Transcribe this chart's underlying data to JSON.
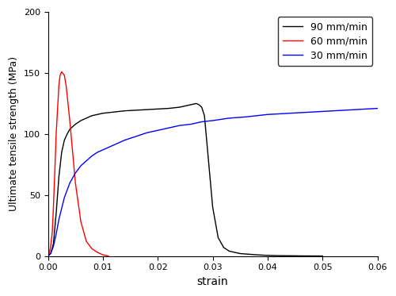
{
  "title": "",
  "xlabel": "strain",
  "ylabel": "Ultimate tensile strength (MPa)",
  "xlim": [
    0,
    0.06
  ],
  "ylim": [
    0,
    200
  ],
  "xticks": [
    0.0,
    0.01,
    0.02,
    0.03,
    0.04,
    0.05,
    0.06
  ],
  "yticks": [
    0,
    50,
    100,
    150,
    200
  ],
  "legend": [
    "90 mm/min",
    "60 mm/min",
    "30 mm/min"
  ],
  "legend_colors": [
    "black",
    "red",
    "blue"
  ],
  "background_color": "#ffffff",
  "line_width": 1.0,
  "black_curve": {
    "x": [
      0,
      0.0005,
      0.001,
      0.0015,
      0.002,
      0.0025,
      0.003,
      0.0035,
      0.004,
      0.005,
      0.006,
      0.007,
      0.008,
      0.009,
      0.01,
      0.012,
      0.014,
      0.016,
      0.018,
      0.02,
      0.022,
      0.024,
      0.025,
      0.026,
      0.027,
      0.0275,
      0.028,
      0.0285,
      0.029,
      0.03,
      0.031,
      0.032,
      0.033,
      0.035,
      0.038,
      0.04,
      0.042,
      0.044,
      0.046,
      0.048,
      0.05
    ],
    "y": [
      0,
      2,
      10,
      35,
      65,
      85,
      95,
      100,
      104,
      108,
      111,
      113,
      115,
      116,
      117,
      118,
      119,
      119.5,
      120,
      120.5,
      121,
      122,
      123,
      124,
      125,
      124,
      122,
      115,
      90,
      40,
      15,
      7,
      4,
      2,
      1,
      0.5,
      0.3,
      0.2,
      0.1,
      0.05,
      0
    ]
  },
  "red_curve": {
    "x": [
      0,
      0.0003,
      0.0005,
      0.0008,
      0.001,
      0.0013,
      0.0015,
      0.002,
      0.0022,
      0.0025,
      0.003,
      0.0033,
      0.0035,
      0.004,
      0.005,
      0.006,
      0.007,
      0.008,
      0.009,
      0.0095,
      0.01,
      0.011
    ],
    "y": [
      0,
      3,
      8,
      20,
      40,
      75,
      100,
      140,
      148,
      151,
      148,
      140,
      132,
      110,
      60,
      28,
      12,
      6,
      3,
      2,
      1,
      0
    ]
  },
  "blue_curve": {
    "x": [
      0,
      0.0005,
      0.001,
      0.0015,
      0.002,
      0.003,
      0.004,
      0.005,
      0.006,
      0.007,
      0.008,
      0.009,
      0.01,
      0.012,
      0.014,
      0.016,
      0.018,
      0.02,
      0.022,
      0.024,
      0.026,
      0.028,
      0.03,
      0.033,
      0.036,
      0.04,
      0.044,
      0.048,
      0.052,
      0.056,
      0.06
    ],
    "y": [
      0,
      2,
      8,
      18,
      30,
      48,
      60,
      68,
      74,
      78,
      82,
      85,
      87,
      91,
      95,
      98,
      101,
      103,
      105,
      107,
      108,
      110,
      111,
      113,
      114,
      116,
      117,
      118,
      119,
      120,
      121
    ]
  }
}
